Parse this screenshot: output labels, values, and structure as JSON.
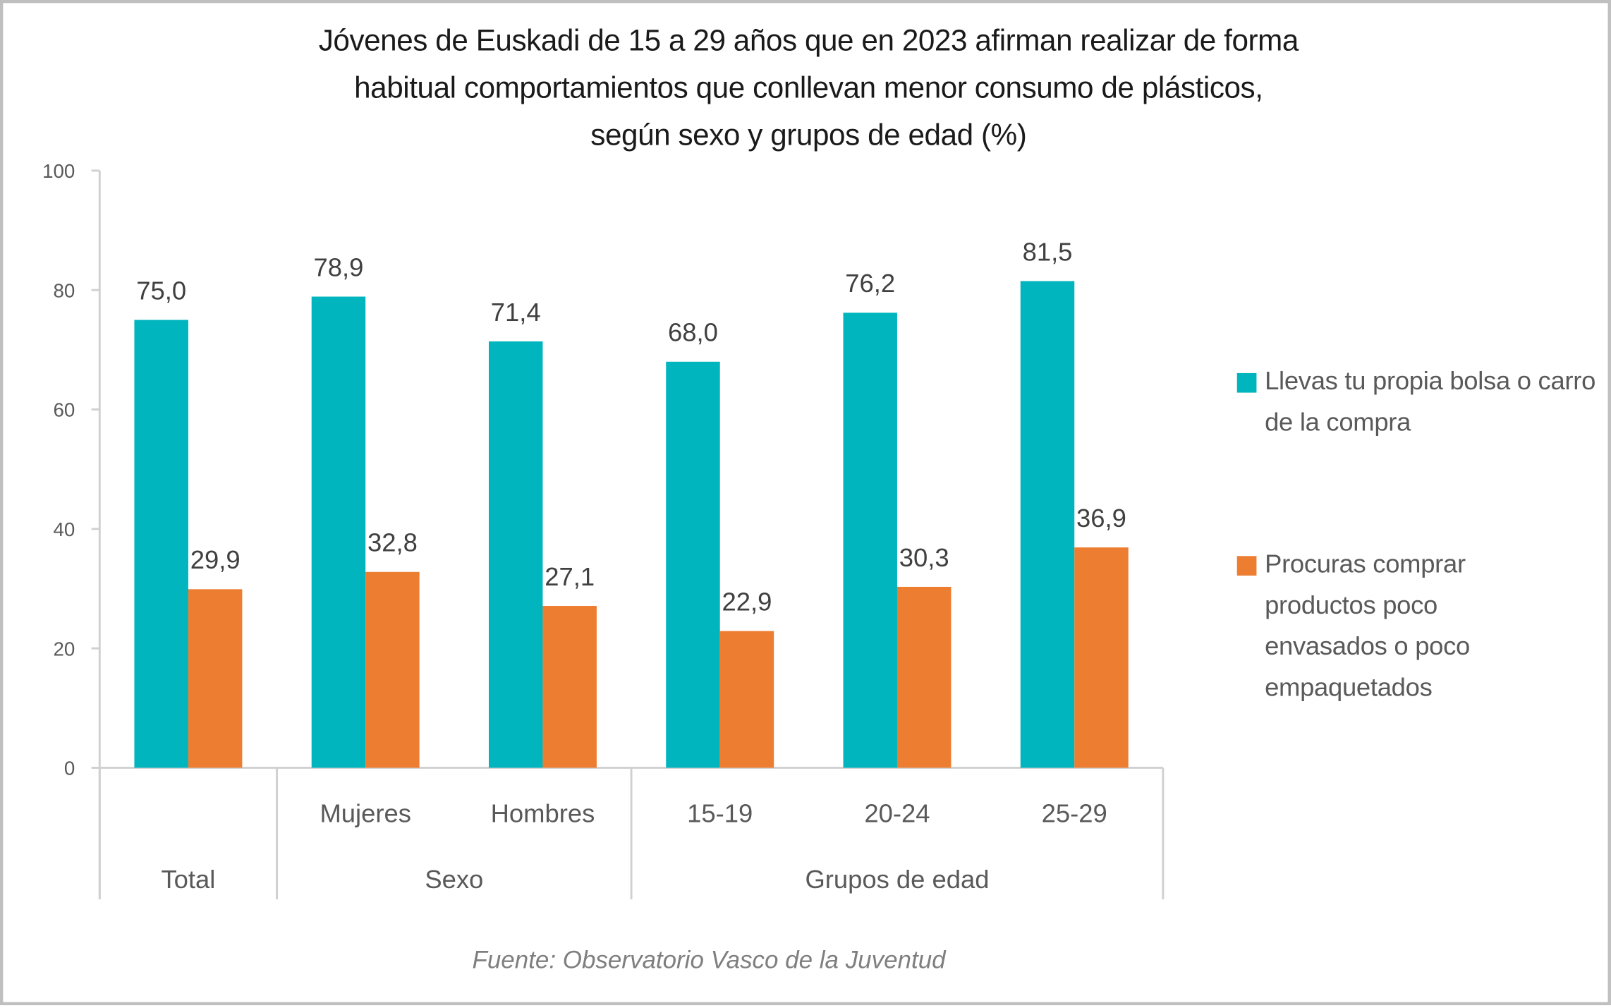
{
  "chart_data": {
    "type": "bar",
    "title": "Jóvenes de Euskadi de 15 a 29 años que en 2023 afirman realizar de forma\nhabitual comportamientos que conllevan menor consumo de plásticos,\nsegún sexo y grupos de edad (%)",
    "groups": [
      {
        "label": "Total",
        "categories": [
          "Total"
        ]
      },
      {
        "label": "Sexo",
        "categories": [
          "Mujeres",
          "Hombres"
        ]
      },
      {
        "label": "Grupos de edad",
        "categories": [
          "15-19",
          "20-24",
          "25-29"
        ]
      }
    ],
    "categories": [
      "Total",
      "Mujeres",
      "Hombres",
      "15-19",
      "20-24",
      "25-29"
    ],
    "series": [
      {
        "name": "Llevas tu propia bolsa o carro de la compra",
        "color": "#00B5BE",
        "values": [
          75.0,
          78.9,
          71.4,
          68.0,
          76.2,
          81.5
        ],
        "labels": [
          "75,0",
          "78,9",
          "71,4",
          "68,0",
          "76,2",
          "81,5"
        ]
      },
      {
        "name": "Procuras comprar productos poco envasados o poco empaquetados",
        "color": "#ED7D31",
        "values": [
          29.9,
          32.8,
          27.1,
          22.9,
          30.3,
          36.9
        ],
        "labels": [
          "29,9",
          "32,8",
          "27,1",
          "22,9",
          "30,3",
          "36,9"
        ]
      }
    ],
    "ylim": [
      0,
      100
    ],
    "yticks": [
      "0",
      "20",
      "40",
      "60",
      "80",
      "100"
    ],
    "grid": false,
    "legend": "right",
    "xlabel": "",
    "ylabel": ""
  },
  "source": "Fuente: Observatorio Vasco de la Juventud"
}
